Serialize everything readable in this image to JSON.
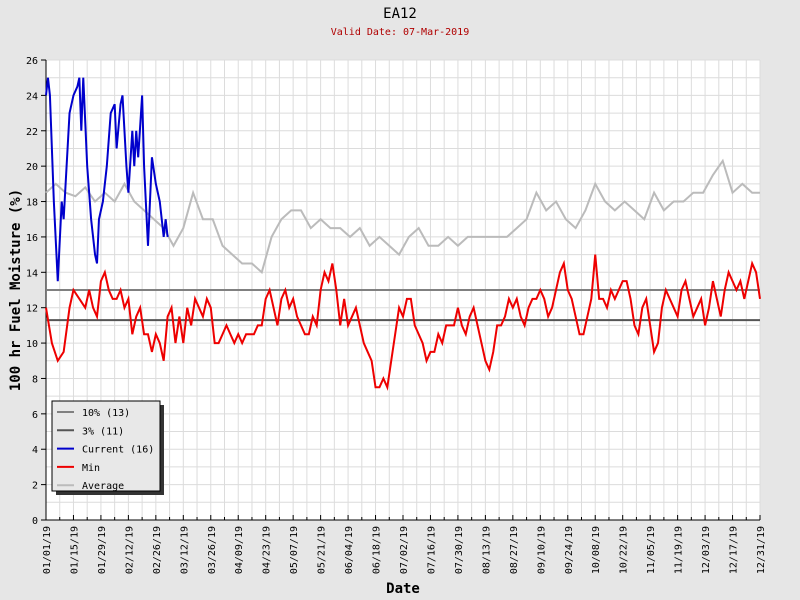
{
  "chart_data": {
    "type": "line",
    "title": "EA12",
    "subtitle": "Valid Date: 07-Mar-2019",
    "xlabel": "Date",
    "ylabel": "100 hr Fuel Moisture (%)",
    "ylim": [
      0,
      26
    ],
    "yticks": [
      0,
      2,
      4,
      6,
      8,
      10,
      12,
      14,
      16,
      18,
      20,
      22,
      24,
      26
    ],
    "xlim_days": [
      0,
      364
    ],
    "xtick_labels": [
      "01/01/19",
      "01/15/19",
      "01/29/19",
      "02/12/19",
      "02/26/19",
      "03/12/19",
      "03/26/19",
      "04/09/19",
      "04/23/19",
      "05/07/19",
      "05/21/19",
      "06/04/19",
      "06/18/19",
      "07/02/19",
      "07/16/19",
      "07/30/19",
      "08/13/19",
      "08/27/19",
      "09/10/19",
      "09/24/19",
      "10/08/19",
      "10/22/19",
      "11/05/19",
      "11/19/19",
      "12/03/19",
      "12/17/19",
      "12/31/19"
    ],
    "grid": true,
    "legend_position": "bottom-left",
    "reference_lines": [
      {
        "name": "10% (13)",
        "value": 13,
        "color": "#808080"
      },
      {
        "name": "3% (11)",
        "value": 11.3,
        "color": "#555555"
      }
    ],
    "series": [
      {
        "name": "Current (16)",
        "color": "#0000cc",
        "x": [
          0,
          1,
          2,
          4,
          6,
          8,
          9,
          10,
          12,
          14,
          16,
          17,
          18,
          19,
          21,
          23,
          25,
          26,
          27,
          29,
          31,
          33,
          35,
          36,
          38,
          39,
          41,
          42,
          44,
          45,
          46,
          47,
          49,
          50,
          52,
          54,
          56,
          58,
          60,
          61,
          62
        ],
        "y": [
          24,
          25,
          24,
          18,
          13.5,
          18,
          17,
          19,
          23,
          24,
          24.5,
          25,
          22,
          25,
          20,
          17,
          15,
          14.5,
          17,
          18,
          20,
          23,
          23.5,
          21,
          23.5,
          24,
          20,
          18.5,
          22,
          20,
          22,
          20.5,
          24,
          20,
          15.5,
          20.5,
          19,
          18,
          16,
          17,
          16
        ]
      },
      {
        "name": "Min",
        "color": "#ee0000",
        "x": [
          0,
          3,
          6,
          9,
          12,
          14,
          17,
          20,
          22,
          24,
          26,
          28,
          30,
          32,
          34,
          36,
          38,
          40,
          42,
          44,
          46,
          48,
          50,
          52,
          54,
          56,
          58,
          60,
          62,
          64,
          66,
          68,
          70,
          72,
          74,
          76,
          78,
          80,
          82,
          84,
          86,
          88,
          90,
          92,
          94,
          96,
          98,
          100,
          102,
          104,
          106,
          108,
          110,
          112,
          114,
          116,
          118,
          120,
          122,
          124,
          126,
          128,
          130,
          132,
          134,
          136,
          138,
          140,
          142,
          144,
          146,
          148,
          150,
          152,
          154,
          156,
          158,
          160,
          162,
          164,
          166,
          168,
          170,
          172,
          174,
          176,
          178,
          180,
          182,
          184,
          186,
          188,
          190,
          192,
          194,
          196,
          198,
          200,
          202,
          204,
          206,
          208,
          210,
          212,
          214,
          216,
          218,
          220,
          222,
          224,
          226,
          228,
          230,
          232,
          234,
          236,
          238,
          240,
          242,
          244,
          246,
          248,
          250,
          252,
          254,
          256,
          258,
          260,
          262,
          264,
          266,
          268,
          270,
          272,
          274,
          276,
          278,
          280,
          282,
          284,
          286,
          288,
          290,
          292,
          294,
          296,
          298,
          300,
          302,
          304,
          306,
          308,
          310,
          312,
          314,
          316,
          318,
          320,
          322,
          324,
          326,
          328,
          330,
          332,
          334,
          336,
          338,
          340,
          342,
          344,
          346,
          348,
          350,
          352,
          354,
          356,
          358,
          360,
          362,
          364
        ],
        "y": [
          12,
          10,
          9,
          9.5,
          12,
          13,
          12.5,
          12,
          13,
          12,
          11.5,
          13.5,
          14,
          13,
          12.5,
          12.5,
          13,
          12,
          12.5,
          10.5,
          11.5,
          12,
          10.5,
          10.5,
          9.5,
          10.5,
          10,
          9,
          11.5,
          12,
          10,
          11.5,
          10,
          12,
          11,
          12.5,
          12,
          11.5,
          12.5,
          12,
          10,
          10,
          10.5,
          11,
          10.5,
          10,
          10.5,
          10,
          10.5,
          10.5,
          10.5,
          11,
          11,
          12.5,
          13,
          12,
          11,
          12.5,
          13,
          12,
          12.5,
          11.5,
          11,
          10.5,
          10.5,
          11.5,
          11,
          13,
          14,
          13.5,
          14.5,
          13,
          11,
          12.5,
          11,
          11.5,
          12,
          11,
          10,
          9.5,
          9,
          7.5,
          7.5,
          8,
          7.5,
          9,
          10.5,
          12,
          11.5,
          12.5,
          12.5,
          11,
          10.5,
          10,
          9,
          9.5,
          9.5,
          10.5,
          10,
          11,
          11,
          11,
          12,
          11,
          10.5,
          11.5,
          12,
          11,
          10,
          9,
          8.5,
          9.5,
          11,
          11,
          11.5,
          12.5,
          12,
          12.5,
          11.5,
          11,
          12,
          12.5,
          12.5,
          13,
          12.5,
          11.5,
          12,
          13,
          14,
          14.5,
          13,
          12.5,
          11.5,
          10.5,
          10.5,
          11.5,
          12.5,
          15,
          12.5,
          12.5,
          12,
          13,
          12.5,
          13,
          13.5,
          13.5,
          12.5,
          11,
          10.5,
          12,
          12.5,
          11,
          9.5,
          10,
          12,
          13,
          12.5,
          12,
          11.5,
          13,
          13.5,
          12.5,
          11.5,
          12,
          12.5,
          11,
          12,
          13.5,
          12.5,
          11.5,
          13,
          14,
          13.5,
          13,
          13.5,
          12.5,
          13.5,
          14.5,
          14,
          12.5
        ]
      },
      {
        "name": "Average",
        "color": "#bbbbbb",
        "x": [
          0,
          5,
          10,
          15,
          20,
          25,
          30,
          35,
          40,
          45,
          50,
          55,
          60,
          65,
          70,
          75,
          80,
          85,
          90,
          95,
          100,
          105,
          110,
          115,
          120,
          125,
          130,
          135,
          140,
          145,
          150,
          155,
          160,
          165,
          170,
          175,
          180,
          185,
          190,
          195,
          200,
          205,
          210,
          215,
          220,
          225,
          230,
          235,
          240,
          245,
          250,
          255,
          260,
          265,
          270,
          275,
          280,
          285,
          290,
          295,
          300,
          305,
          310,
          315,
          320,
          325,
          330,
          335,
          340,
          345,
          350,
          355,
          360,
          364
        ],
        "y": [
          18.5,
          19,
          18.5,
          18.3,
          18.8,
          18,
          18.5,
          18,
          19,
          18,
          17.5,
          17,
          16.5,
          15.5,
          16.5,
          18.5,
          17,
          17,
          15.5,
          15,
          14.5,
          14.5,
          14,
          16,
          17,
          17.5,
          17.5,
          16.5,
          17,
          16.5,
          16.5,
          16,
          16.5,
          15.5,
          16,
          15.5,
          15,
          16,
          16.5,
          15.5,
          15.5,
          16,
          15.5,
          16,
          16,
          16,
          16,
          16,
          16.5,
          17,
          18.5,
          17.5,
          18,
          17,
          16.5,
          17.5,
          19,
          18,
          17.5,
          18,
          17.5,
          17,
          18.5,
          17.5,
          18,
          18,
          18.5,
          18.5,
          19.5,
          20.3,
          18.5,
          19,
          18.5,
          18.5
        ]
      }
    ]
  }
}
